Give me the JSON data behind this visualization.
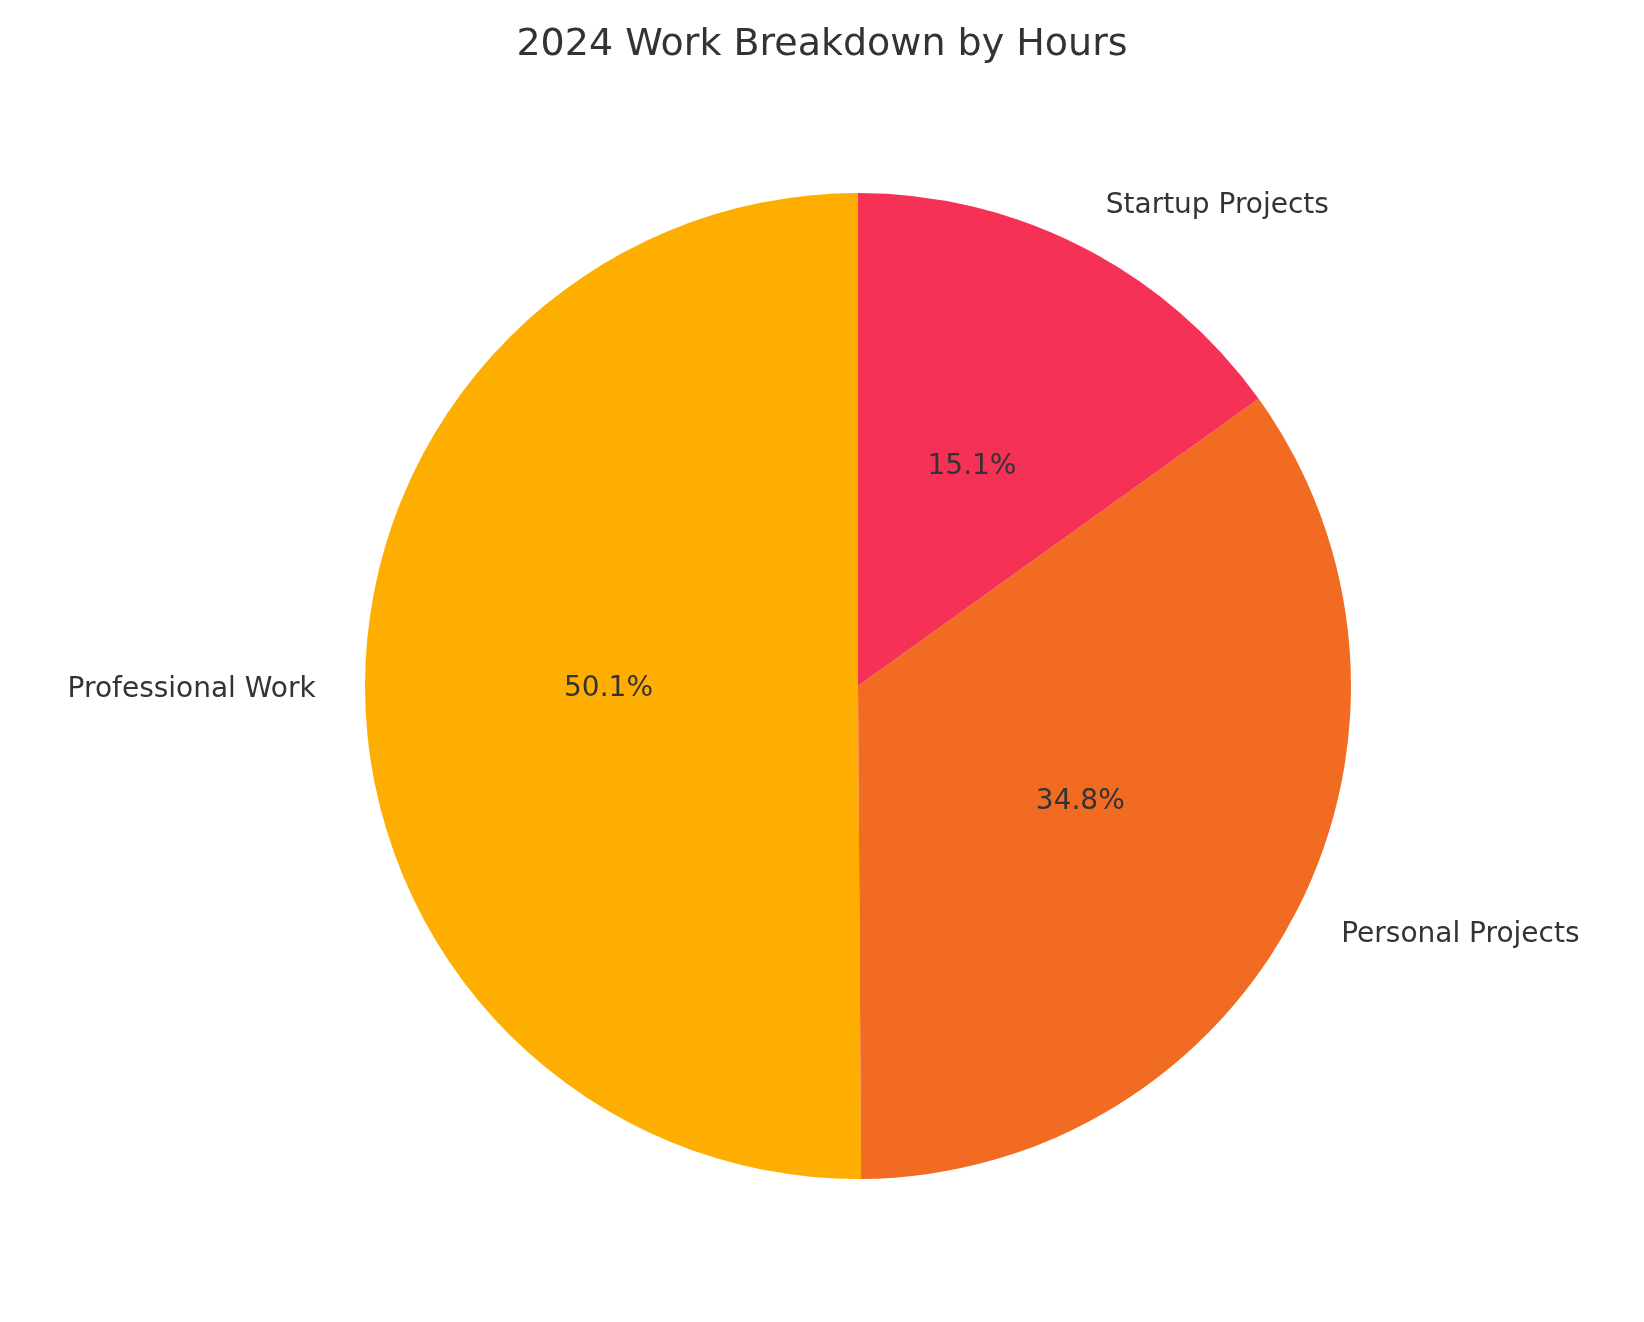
{
  "chart_data": {
    "type": "pie",
    "title": "2024 Work Breakdown by Hours",
    "categories": [
      "Professional Work",
      "Personal Projects",
      "Startup Projects"
    ],
    "values": [
      50.1,
      34.8,
      15.1
    ],
    "colors": [
      "#fdae00",
      "#f26b22",
      "#f53256"
    ],
    "value_labels": [
      "50.1%",
      "34.8%",
      "15.1%"
    ]
  }
}
